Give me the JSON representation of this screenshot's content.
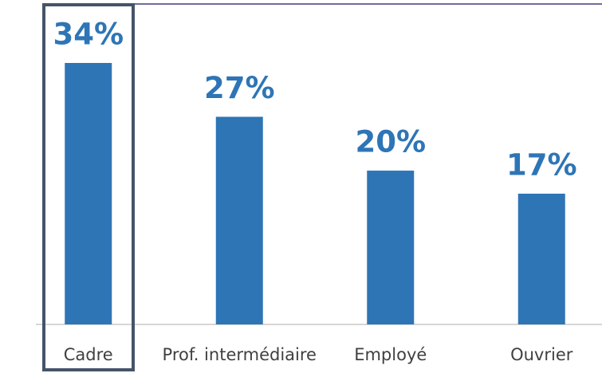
{
  "chart_data": {
    "type": "bar",
    "categories": [
      "Cadre",
      "Prof. intermédiaire",
      "Employé",
      "Ouvrier"
    ],
    "values": [
      34,
      27,
      20,
      17
    ],
    "value_labels": [
      "34%",
      "27%",
      "20%",
      "17%"
    ],
    "color": "#2e75b6"
  }
}
